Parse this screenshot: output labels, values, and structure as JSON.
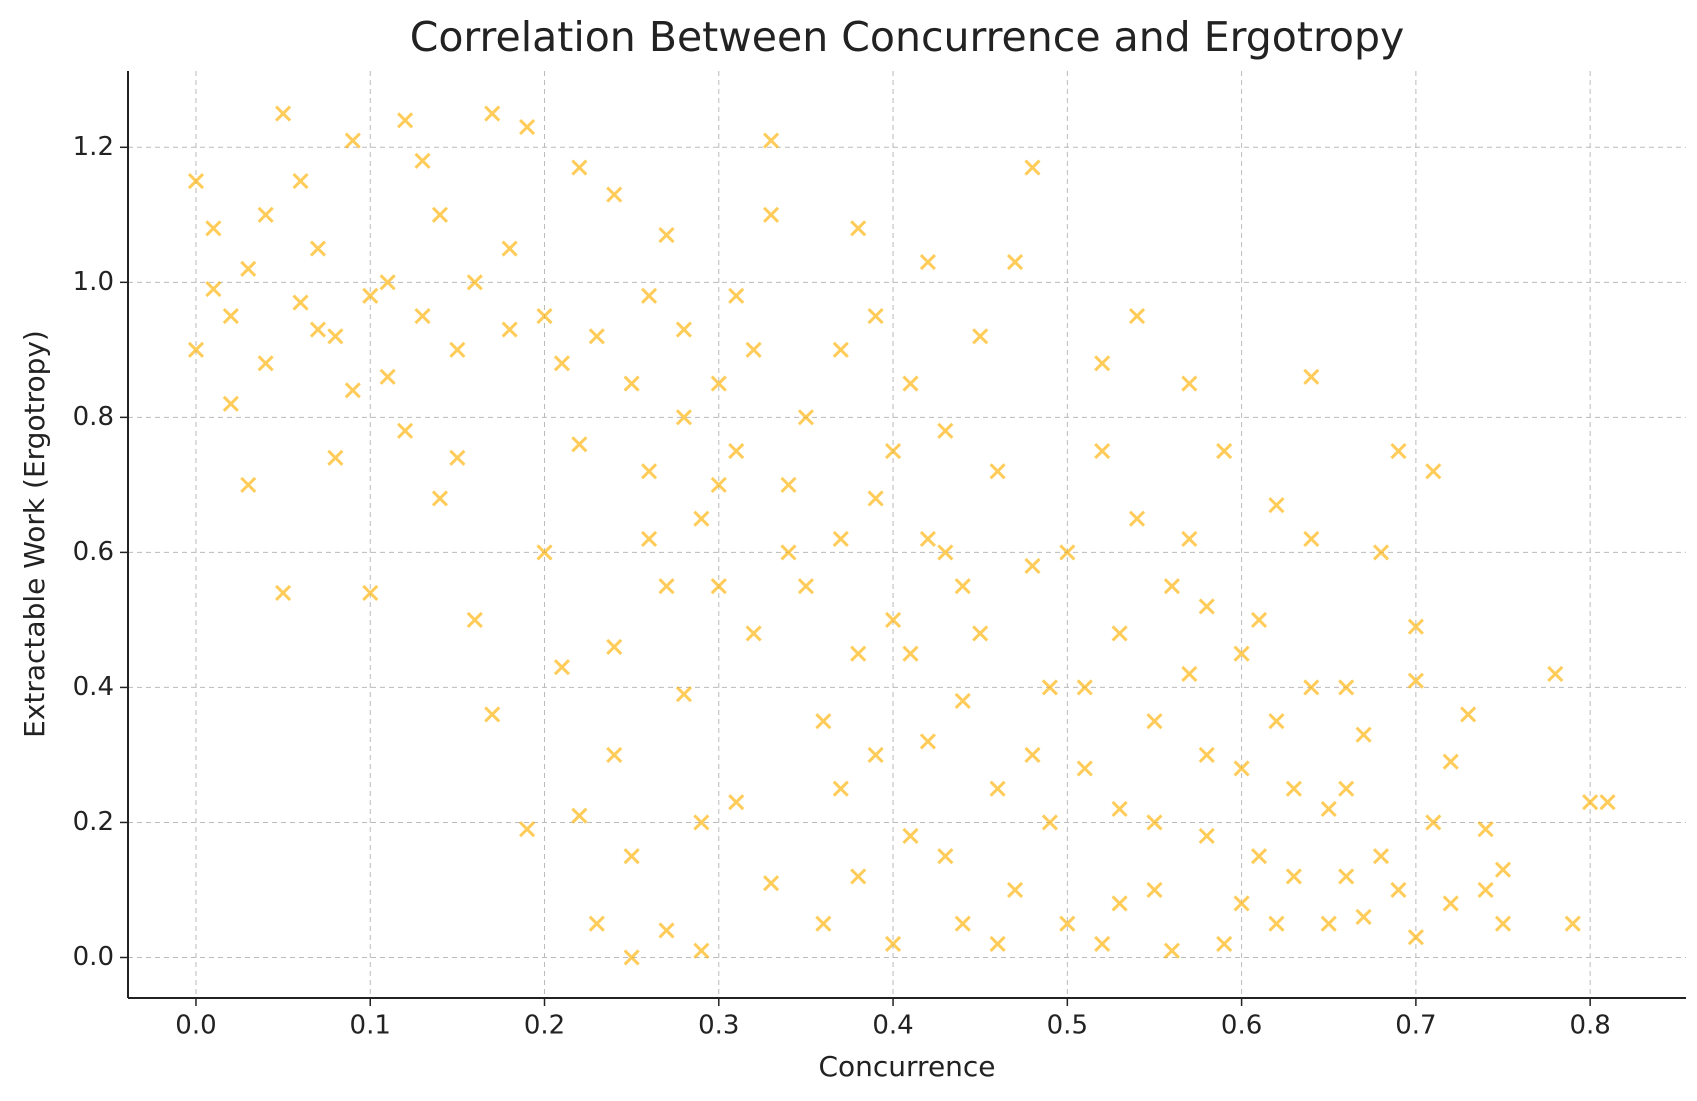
{
  "chart_data": {
    "type": "scatter",
    "title": "Correlation Between Concurrence and Ergotropy",
    "x_label": "Concurrence",
    "y_label": "Extractable Work (Ergotropy)",
    "xlim": [
      -0.039,
      0.855
    ],
    "ylim": [
      -0.06,
      1.313
    ],
    "xticks": [
      {
        "value": 0,
        "label": "0.0"
      },
      0.1,
      0.2,
      0.3,
      0.4,
      0.5,
      0.6,
      0.7,
      0.8
    ],
    "yticks": [
      {
        "value": 0,
        "label": "0.0"
      },
      0.2,
      0.4,
      0.6,
      0.8,
      {
        "value": 1,
        "label": "1.0"
      },
      1.2
    ],
    "grid": true,
    "series": [
      {
        "color": "#ffb000",
        "x": [
          0.0,
          0.01,
          0.02,
          0.03,
          0.04,
          0.05,
          0.06,
          0.07,
          0.08,
          0.09,
          0.1,
          0.11,
          0.12,
          0.13,
          0.14,
          0.15,
          0.16,
          0.17,
          0.18,
          0.19,
          0.02,
          0.05,
          0.1,
          0.03,
          0.08,
          0.14,
          0.16,
          0.17,
          0.19,
          0.12,
          0.06,
          0.0,
          0.04,
          0.09,
          0.13,
          0.18,
          0.15,
          0.11,
          0.07,
          0.01,
          0.2,
          0.21,
          0.22,
          0.23,
          0.24,
          0.25,
          0.26,
          0.27,
          0.28,
          0.29,
          0.3,
          0.31,
          0.32,
          0.33,
          0.34,
          0.21,
          0.22,
          0.23,
          0.24,
          0.25,
          0.26,
          0.27,
          0.28,
          0.29,
          0.3,
          0.31,
          0.32,
          0.33,
          0.34,
          0.25,
          0.24,
          0.27,
          0.29,
          0.2,
          0.22,
          0.33,
          0.31,
          0.28,
          0.26,
          0.3,
          0.35,
          0.36,
          0.37,
          0.38,
          0.39,
          0.4,
          0.41,
          0.42,
          0.43,
          0.44,
          0.45,
          0.46,
          0.47,
          0.48,
          0.49,
          0.36,
          0.37,
          0.38,
          0.39,
          0.4,
          0.41,
          0.42,
          0.43,
          0.44,
          0.45,
          0.46,
          0.47,
          0.48,
          0.49,
          0.35,
          0.38,
          0.4,
          0.42,
          0.44,
          0.46,
          0.48,
          0.43,
          0.41,
          0.39,
          0.37,
          0.5,
          0.51,
          0.52,
          0.53,
          0.54,
          0.55,
          0.56,
          0.57,
          0.58,
          0.59,
          0.6,
          0.61,
          0.62,
          0.63,
          0.64,
          0.65,
          0.5,
          0.52,
          0.53,
          0.55,
          0.56,
          0.57,
          0.58,
          0.59,
          0.6,
          0.61,
          0.62,
          0.63,
          0.64,
          0.65,
          0.51,
          0.54,
          0.52,
          0.55,
          0.6,
          0.62,
          0.64,
          0.58,
          0.53,
          0.57,
          0.66,
          0.67,
          0.68,
          0.69,
          0.7,
          0.71,
          0.72,
          0.73,
          0.74,
          0.75,
          0.78,
          0.79,
          0.81,
          0.8,
          0.71,
          0.69,
          0.7,
          0.72,
          0.74,
          0.75,
          0.66,
          0.68,
          0.7,
          0.67,
          0.66
        ],
        "y": [
          0.9,
          1.08,
          0.95,
          1.02,
          0.88,
          1.25,
          0.97,
          1.05,
          0.92,
          1.21,
          0.98,
          0.86,
          1.24,
          0.95,
          1.1,
          0.9,
          1.0,
          1.25,
          0.93,
          1.23,
          0.82,
          0.54,
          0.54,
          0.7,
          0.74,
          0.68,
          0.5,
          0.36,
          0.19,
          0.78,
          1.15,
          1.15,
          1.1,
          0.84,
          1.18,
          1.05,
          0.74,
          1.0,
          0.93,
          0.99,
          0.95,
          0.88,
          1.17,
          0.92,
          1.13,
          0.85,
          0.72,
          1.07,
          0.8,
          0.65,
          0.85,
          0.75,
          0.9,
          1.21,
          0.7,
          0.43,
          0.21,
          0.05,
          0.3,
          0.0,
          0.62,
          0.04,
          0.39,
          0.01,
          0.55,
          0.23,
          0.48,
          0.11,
          0.6,
          0.15,
          0.46,
          0.55,
          0.2,
          0.6,
          0.76,
          1.1,
          0.98,
          0.93,
          0.98,
          0.7,
          0.8,
          0.05,
          0.62,
          1.08,
          0.3,
          0.75,
          0.45,
          1.03,
          0.15,
          0.55,
          0.92,
          0.25,
          1.03,
          1.17,
          0.4,
          0.35,
          0.9,
          0.12,
          0.68,
          0.02,
          0.85,
          0.32,
          0.6,
          0.05,
          0.48,
          0.72,
          0.1,
          0.58,
          0.2,
          0.55,
          0.45,
          0.5,
          0.62,
          0.38,
          0.02,
          0.3,
          0.78,
          0.18,
          0.95,
          0.25,
          0.05,
          0.4,
          0.75,
          0.22,
          0.95,
          0.1,
          0.55,
          0.85,
          0.3,
          0.02,
          0.45,
          0.15,
          0.67,
          0.25,
          0.86,
          0.05,
          0.6,
          0.02,
          0.48,
          0.35,
          0.01,
          0.62,
          0.18,
          0.75,
          0.08,
          0.5,
          0.35,
          0.12,
          0.62,
          0.22,
          0.28,
          0.65,
          0.88,
          0.2,
          0.28,
          0.05,
          0.4,
          0.52,
          0.08,
          0.42,
          0.4,
          0.06,
          0.6,
          0.75,
          0.49,
          0.2,
          0.29,
          0.36,
          0.1,
          0.05,
          0.42,
          0.05,
          0.23,
          0.23,
          0.72,
          0.1,
          0.03,
          0.08,
          0.19,
          0.13,
          0.25,
          0.15,
          0.41,
          0.33,
          0.12
        ]
      }
    ]
  }
}
